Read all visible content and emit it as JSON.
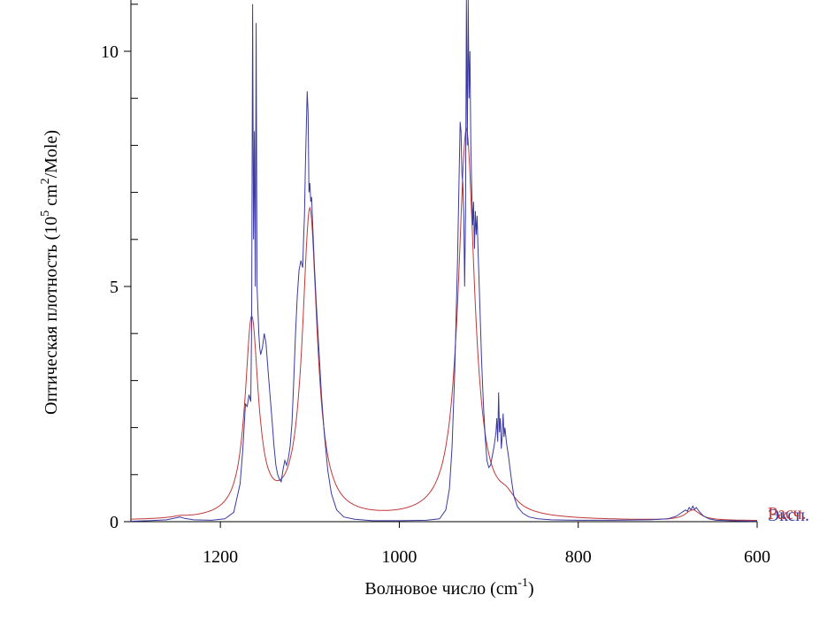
{
  "chart_data": {
    "type": "line",
    "xlabel": "Волновое число (cm",
    "xlabel_sup": "-1",
    "xlabel_end": ")",
    "ylabel": "Оптическая плотность (10",
    "ylabel_sup1": "5",
    "ylabel_mid": " cm",
    "ylabel_sup2": "2",
    "ylabel_end": "/Mole)",
    "xlim": [
      1300,
      600
    ],
    "ylim": [
      0,
      11
    ],
    "xticks": [
      1200,
      1000,
      800,
      600
    ],
    "yticks": [
      0,
      5,
      10
    ],
    "y_minor_step": 1,
    "series": [
      {
        "name": "Эксп.",
        "color": "#3a3aa0",
        "points": [
          [
            1300,
            0.01
          ],
          [
            1280,
            0.02
          ],
          [
            1260,
            0.04
          ],
          [
            1250,
            0.08
          ],
          [
            1245,
            0.1
          ],
          [
            1240,
            0.07
          ],
          [
            1230,
            0.04
          ],
          [
            1210,
            0.03
          ],
          [
            1195,
            0.06
          ],
          [
            1185,
            0.2
          ],
          [
            1178,
            0.8
          ],
          [
            1175,
            1.5
          ],
          [
            1172,
            2.5
          ],
          [
            1170,
            2.45
          ],
          [
            1168,
            2.7
          ],
          [
            1166,
            2.55
          ],
          [
            1165,
            4.2
          ],
          [
            1164,
            11.0
          ],
          [
            1163,
            6.0
          ],
          [
            1162,
            8.3
          ],
          [
            1161,
            5.0
          ],
          [
            1160,
            10.6
          ],
          [
            1159,
            5.0
          ],
          [
            1158,
            4.5
          ],
          [
            1157,
            4.0
          ],
          [
            1156,
            3.7
          ],
          [
            1155,
            3.55
          ],
          [
            1153,
            3.7
          ],
          [
            1151,
            4.0
          ],
          [
            1149,
            3.8
          ],
          [
            1147,
            3.3
          ],
          [
            1145,
            2.8
          ],
          [
            1142,
            2.1
          ],
          [
            1140,
            1.6
          ],
          [
            1138,
            1.2
          ],
          [
            1136,
            1.0
          ],
          [
            1134,
            0.9
          ],
          [
            1132,
            0.85
          ],
          [
            1130,
            1.1
          ],
          [
            1128,
            1.3
          ],
          [
            1126,
            1.2
          ],
          [
            1124,
            1.35
          ],
          [
            1122,
            1.6
          ],
          [
            1120,
            2.1
          ],
          [
            1118,
            3.0
          ],
          [
            1116,
            4.0
          ],
          [
            1114,
            4.8
          ],
          [
            1112,
            5.35
          ],
          [
            1110,
            5.55
          ],
          [
            1108,
            5.4
          ],
          [
            1107,
            6.0
          ],
          [
            1106,
            6.5
          ],
          [
            1105,
            7.5
          ],
          [
            1104,
            8.3
          ],
          [
            1103,
            9.15
          ],
          [
            1102,
            8.7
          ],
          [
            1101,
            7.0
          ],
          [
            1100,
            7.2
          ],
          [
            1099,
            6.8
          ],
          [
            1098,
            6.9
          ],
          [
            1097,
            6.4
          ],
          [
            1095,
            5.5
          ],
          [
            1093,
            4.7
          ],
          [
            1090,
            3.7
          ],
          [
            1087,
            2.7
          ],
          [
            1084,
            1.9
          ],
          [
            1080,
            1.1
          ],
          [
            1076,
            0.6
          ],
          [
            1070,
            0.25
          ],
          [
            1062,
            0.1
          ],
          [
            1050,
            0.05
          ],
          [
            1030,
            0.02
          ],
          [
            1000,
            0.02
          ],
          [
            970,
            0.03
          ],
          [
            955,
            0.06
          ],
          [
            948,
            0.25
          ],
          [
            944,
            0.7
          ],
          [
            941,
            1.6
          ],
          [
            938,
            3.2
          ],
          [
            935,
            5.5
          ],
          [
            933,
            7.5
          ],
          [
            932,
            8.5
          ],
          [
            931,
            8.3
          ],
          [
            930,
            7.4
          ],
          [
            929,
            7.2
          ],
          [
            928,
            6.5
          ],
          [
            927,
            5.0
          ],
          [
            926,
            6.5
          ],
          [
            925,
            11.5
          ],
          [
            924,
            8.0
          ],
          [
            923,
            11.2
          ],
          [
            922,
            9.0
          ],
          [
            921,
            10.0
          ],
          [
            920,
            8.0
          ],
          [
            919,
            7.0
          ],
          [
            918,
            6.3
          ],
          [
            917,
            6.8
          ],
          [
            916,
            5.8
          ],
          [
            915,
            6.6
          ],
          [
            914,
            6.1
          ],
          [
            913,
            6.5
          ],
          [
            912,
            5.8
          ],
          [
            910,
            4.6
          ],
          [
            908,
            3.4
          ],
          [
            906,
            2.5
          ],
          [
            904,
            1.8
          ],
          [
            902,
            1.3
          ],
          [
            900,
            1.15
          ],
          [
            898,
            1.2
          ],
          [
            896,
            1.4
          ],
          [
            894,
            1.6
          ],
          [
            892,
            1.9
          ],
          [
            891,
            2.2
          ],
          [
            890,
            1.7
          ],
          [
            889,
            2.75
          ],
          [
            888,
            1.9
          ],
          [
            887,
            2.2
          ],
          [
            886,
            1.55
          ],
          [
            885,
            1.8
          ],
          [
            884,
            2.3
          ],
          [
            883,
            1.8
          ],
          [
            882,
            2.0
          ],
          [
            880,
            1.65
          ],
          [
            878,
            1.4
          ],
          [
            876,
            1.1
          ],
          [
            874,
            0.8
          ],
          [
            872,
            0.55
          ],
          [
            868,
            0.32
          ],
          [
            862,
            0.18
          ],
          [
            855,
            0.1
          ],
          [
            845,
            0.06
          ],
          [
            830,
            0.04
          ],
          [
            800,
            0.03
          ],
          [
            760,
            0.03
          ],
          [
            720,
            0.04
          ],
          [
            700,
            0.06
          ],
          [
            690,
            0.12
          ],
          [
            684,
            0.2
          ],
          [
            680,
            0.25
          ],
          [
            678,
            0.22
          ],
          [
            676,
            0.3
          ],
          [
            674,
            0.25
          ],
          [
            672,
            0.33
          ],
          [
            670,
            0.26
          ],
          [
            668,
            0.3
          ],
          [
            664,
            0.2
          ],
          [
            660,
            0.12
          ],
          [
            654,
            0.06
          ],
          [
            646,
            0.03
          ],
          [
            630,
            0.02
          ],
          [
            600,
            0.01
          ]
        ]
      },
      {
        "name": "Расч.",
        "color": "#c03838",
        "peaks": [
          [
            1165,
            4.2,
            9
          ],
          [
            1100,
            6.55,
            10
          ],
          [
            925,
            8.3,
            11
          ],
          [
            880,
            0.25,
            12
          ],
          [
            1245,
            0.03,
            10
          ],
          [
            672,
            0.22,
            10
          ]
        ]
      }
    ]
  }
}
